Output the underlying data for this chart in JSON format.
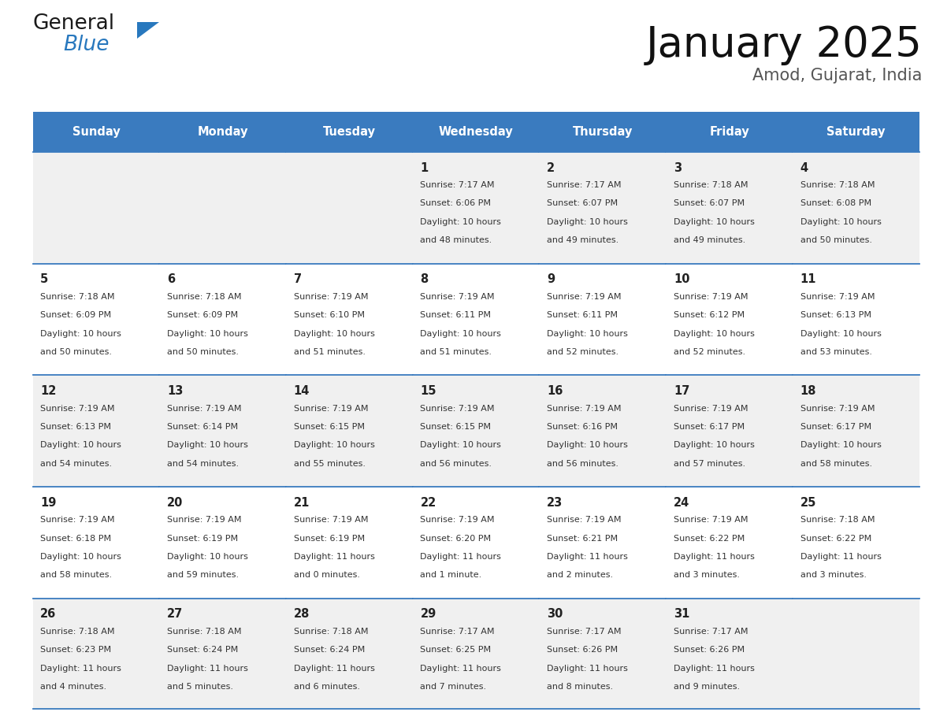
{
  "title": "January 2025",
  "subtitle": "Amod, Gujarat, India",
  "days_of_week": [
    "Sunday",
    "Monday",
    "Tuesday",
    "Wednesday",
    "Thursday",
    "Friday",
    "Saturday"
  ],
  "header_bg": "#3a7bbf",
  "header_text": "#ffffff",
  "row_bg_odd": "#f0f0f0",
  "row_bg_even": "#ffffff",
  "cell_text": "#333333",
  "day_num_color": "#222222",
  "separator_color": "#3a7bbf",
  "calendar_data": [
    [
      null,
      null,
      null,
      {
        "day": "1",
        "sunrise": "7:17 AM",
        "sunset": "6:06 PM",
        "daylight_l1": "10 hours",
        "daylight_l2": "and 48 minutes."
      },
      {
        "day": "2",
        "sunrise": "7:17 AM",
        "sunset": "6:07 PM",
        "daylight_l1": "10 hours",
        "daylight_l2": "and 49 minutes."
      },
      {
        "day": "3",
        "sunrise": "7:18 AM",
        "sunset": "6:07 PM",
        "daylight_l1": "10 hours",
        "daylight_l2": "and 49 minutes."
      },
      {
        "day": "4",
        "sunrise": "7:18 AM",
        "sunset": "6:08 PM",
        "daylight_l1": "10 hours",
        "daylight_l2": "and 50 minutes."
      }
    ],
    [
      {
        "day": "5",
        "sunrise": "7:18 AM",
        "sunset": "6:09 PM",
        "daylight_l1": "10 hours",
        "daylight_l2": "and 50 minutes."
      },
      {
        "day": "6",
        "sunrise": "7:18 AM",
        "sunset": "6:09 PM",
        "daylight_l1": "10 hours",
        "daylight_l2": "and 50 minutes."
      },
      {
        "day": "7",
        "sunrise": "7:19 AM",
        "sunset": "6:10 PM",
        "daylight_l1": "10 hours",
        "daylight_l2": "and 51 minutes."
      },
      {
        "day": "8",
        "sunrise": "7:19 AM",
        "sunset": "6:11 PM",
        "daylight_l1": "10 hours",
        "daylight_l2": "and 51 minutes."
      },
      {
        "day": "9",
        "sunrise": "7:19 AM",
        "sunset": "6:11 PM",
        "daylight_l1": "10 hours",
        "daylight_l2": "and 52 minutes."
      },
      {
        "day": "10",
        "sunrise": "7:19 AM",
        "sunset": "6:12 PM",
        "daylight_l1": "10 hours",
        "daylight_l2": "and 52 minutes."
      },
      {
        "day": "11",
        "sunrise": "7:19 AM",
        "sunset": "6:13 PM",
        "daylight_l1": "10 hours",
        "daylight_l2": "and 53 minutes."
      }
    ],
    [
      {
        "day": "12",
        "sunrise": "7:19 AM",
        "sunset": "6:13 PM",
        "daylight_l1": "10 hours",
        "daylight_l2": "and 54 minutes."
      },
      {
        "day": "13",
        "sunrise": "7:19 AM",
        "sunset": "6:14 PM",
        "daylight_l1": "10 hours",
        "daylight_l2": "and 54 minutes."
      },
      {
        "day": "14",
        "sunrise": "7:19 AM",
        "sunset": "6:15 PM",
        "daylight_l1": "10 hours",
        "daylight_l2": "and 55 minutes."
      },
      {
        "day": "15",
        "sunrise": "7:19 AM",
        "sunset": "6:15 PM",
        "daylight_l1": "10 hours",
        "daylight_l2": "and 56 minutes."
      },
      {
        "day": "16",
        "sunrise": "7:19 AM",
        "sunset": "6:16 PM",
        "daylight_l1": "10 hours",
        "daylight_l2": "and 56 minutes."
      },
      {
        "day": "17",
        "sunrise": "7:19 AM",
        "sunset": "6:17 PM",
        "daylight_l1": "10 hours",
        "daylight_l2": "and 57 minutes."
      },
      {
        "day": "18",
        "sunrise": "7:19 AM",
        "sunset": "6:17 PM",
        "daylight_l1": "10 hours",
        "daylight_l2": "and 58 minutes."
      }
    ],
    [
      {
        "day": "19",
        "sunrise": "7:19 AM",
        "sunset": "6:18 PM",
        "daylight_l1": "10 hours",
        "daylight_l2": "and 58 minutes."
      },
      {
        "day": "20",
        "sunrise": "7:19 AM",
        "sunset": "6:19 PM",
        "daylight_l1": "10 hours",
        "daylight_l2": "and 59 minutes."
      },
      {
        "day": "21",
        "sunrise": "7:19 AM",
        "sunset": "6:19 PM",
        "daylight_l1": "11 hours",
        "daylight_l2": "and 0 minutes."
      },
      {
        "day": "22",
        "sunrise": "7:19 AM",
        "sunset": "6:20 PM",
        "daylight_l1": "11 hours",
        "daylight_l2": "and 1 minute."
      },
      {
        "day": "23",
        "sunrise": "7:19 AM",
        "sunset": "6:21 PM",
        "daylight_l1": "11 hours",
        "daylight_l2": "and 2 minutes."
      },
      {
        "day": "24",
        "sunrise": "7:19 AM",
        "sunset": "6:22 PM",
        "daylight_l1": "11 hours",
        "daylight_l2": "and 3 minutes."
      },
      {
        "day": "25",
        "sunrise": "7:18 AM",
        "sunset": "6:22 PM",
        "daylight_l1": "11 hours",
        "daylight_l2": "and 3 minutes."
      }
    ],
    [
      {
        "day": "26",
        "sunrise": "7:18 AM",
        "sunset": "6:23 PM",
        "daylight_l1": "11 hours",
        "daylight_l2": "and 4 minutes."
      },
      {
        "day": "27",
        "sunrise": "7:18 AM",
        "sunset": "6:24 PM",
        "daylight_l1": "11 hours",
        "daylight_l2": "and 5 minutes."
      },
      {
        "day": "28",
        "sunrise": "7:18 AM",
        "sunset": "6:24 PM",
        "daylight_l1": "11 hours",
        "daylight_l2": "and 6 minutes."
      },
      {
        "day": "29",
        "sunrise": "7:17 AM",
        "sunset": "6:25 PM",
        "daylight_l1": "11 hours",
        "daylight_l2": "and 7 minutes."
      },
      {
        "day": "30",
        "sunrise": "7:17 AM",
        "sunset": "6:26 PM",
        "daylight_l1": "11 hours",
        "daylight_l2": "and 8 minutes."
      },
      {
        "day": "31",
        "sunrise": "7:17 AM",
        "sunset": "6:26 PM",
        "daylight_l1": "11 hours",
        "daylight_l2": "and 9 minutes."
      },
      null
    ]
  ],
  "logo_general_color": "#1a1a1a",
  "logo_blue_color": "#2878be",
  "logo_triangle_color": "#2878be",
  "figsize": [
    11.88,
    9.18
  ],
  "dpi": 100
}
